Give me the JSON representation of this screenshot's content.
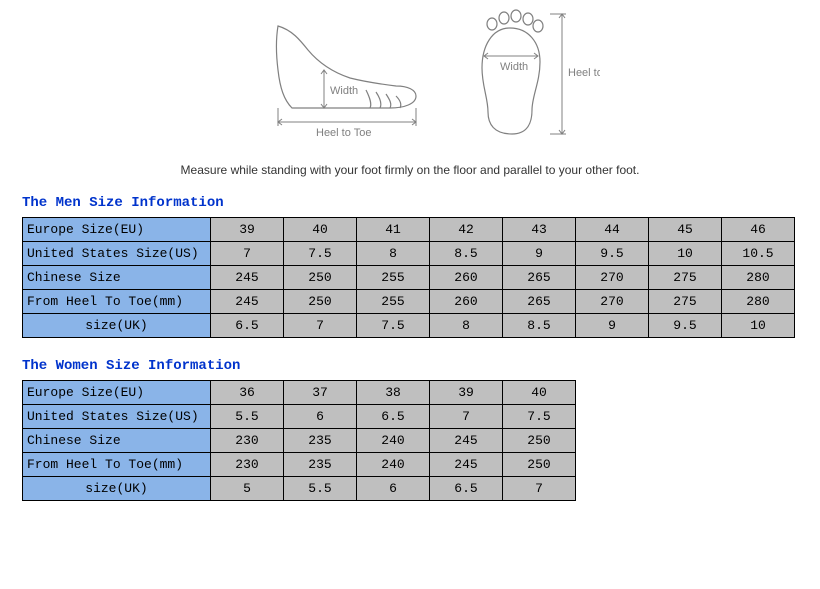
{
  "diagram": {
    "label_width": "Width",
    "label_heel_to_toe": "Heel to Toe",
    "stroke_color": "#808080",
    "text_color": "#808080"
  },
  "caption": "Measure while standing with your foot firmly on the floor and parallel to your other foot.",
  "section_title_color": "#0033cc",
  "header_bg": "#8ab4e8",
  "data_bg": "#bfbfbf",
  "border_color": "#000000",
  "men": {
    "title": "The Men Size Information",
    "rows": [
      {
        "label": "Europe Size(EU)",
        "align": "left",
        "cells": [
          "39",
          "40",
          "41",
          "42",
          "43",
          "44",
          "45",
          "46"
        ]
      },
      {
        "label": "United States Size(US)",
        "align": "left",
        "cells": [
          "7",
          "7.5",
          "8",
          "8.5",
          "9",
          "9.5",
          "10",
          "10.5"
        ]
      },
      {
        "label": "Chinese Size",
        "align": "left",
        "cells": [
          "245",
          "250",
          "255",
          "260",
          "265",
          "270",
          "275",
          "280"
        ]
      },
      {
        "label": "From Heel To Toe(mm)",
        "align": "left",
        "cells": [
          "245",
          "250",
          "255",
          "260",
          "265",
          "270",
          "275",
          "280"
        ]
      },
      {
        "label": "size(UK)",
        "align": "center",
        "cells": [
          "6.5",
          "7",
          "7.5",
          "8",
          "8.5",
          "9",
          "9.5",
          "10"
        ]
      }
    ]
  },
  "women": {
    "title": "The Women Size Information",
    "rows": [
      {
        "label": "Europe Size(EU)",
        "align": "left",
        "cells": [
          "36",
          "37",
          "38",
          "39",
          "40"
        ]
      },
      {
        "label": "United States Size(US)",
        "align": "left",
        "cells": [
          "5.5",
          "6",
          "6.5",
          "7",
          "7.5"
        ]
      },
      {
        "label": "Chinese Size",
        "align": "left",
        "cells": [
          "230",
          "235",
          "240",
          "245",
          "250"
        ]
      },
      {
        "label": "From Heel To Toe(mm)",
        "align": "left",
        "cells": [
          "230",
          "235",
          "240",
          "245",
          "250"
        ]
      },
      {
        "label": "size(UK)",
        "align": "center",
        "cells": [
          "5",
          "5.5",
          "6",
          "6.5",
          "7"
        ]
      }
    ]
  }
}
